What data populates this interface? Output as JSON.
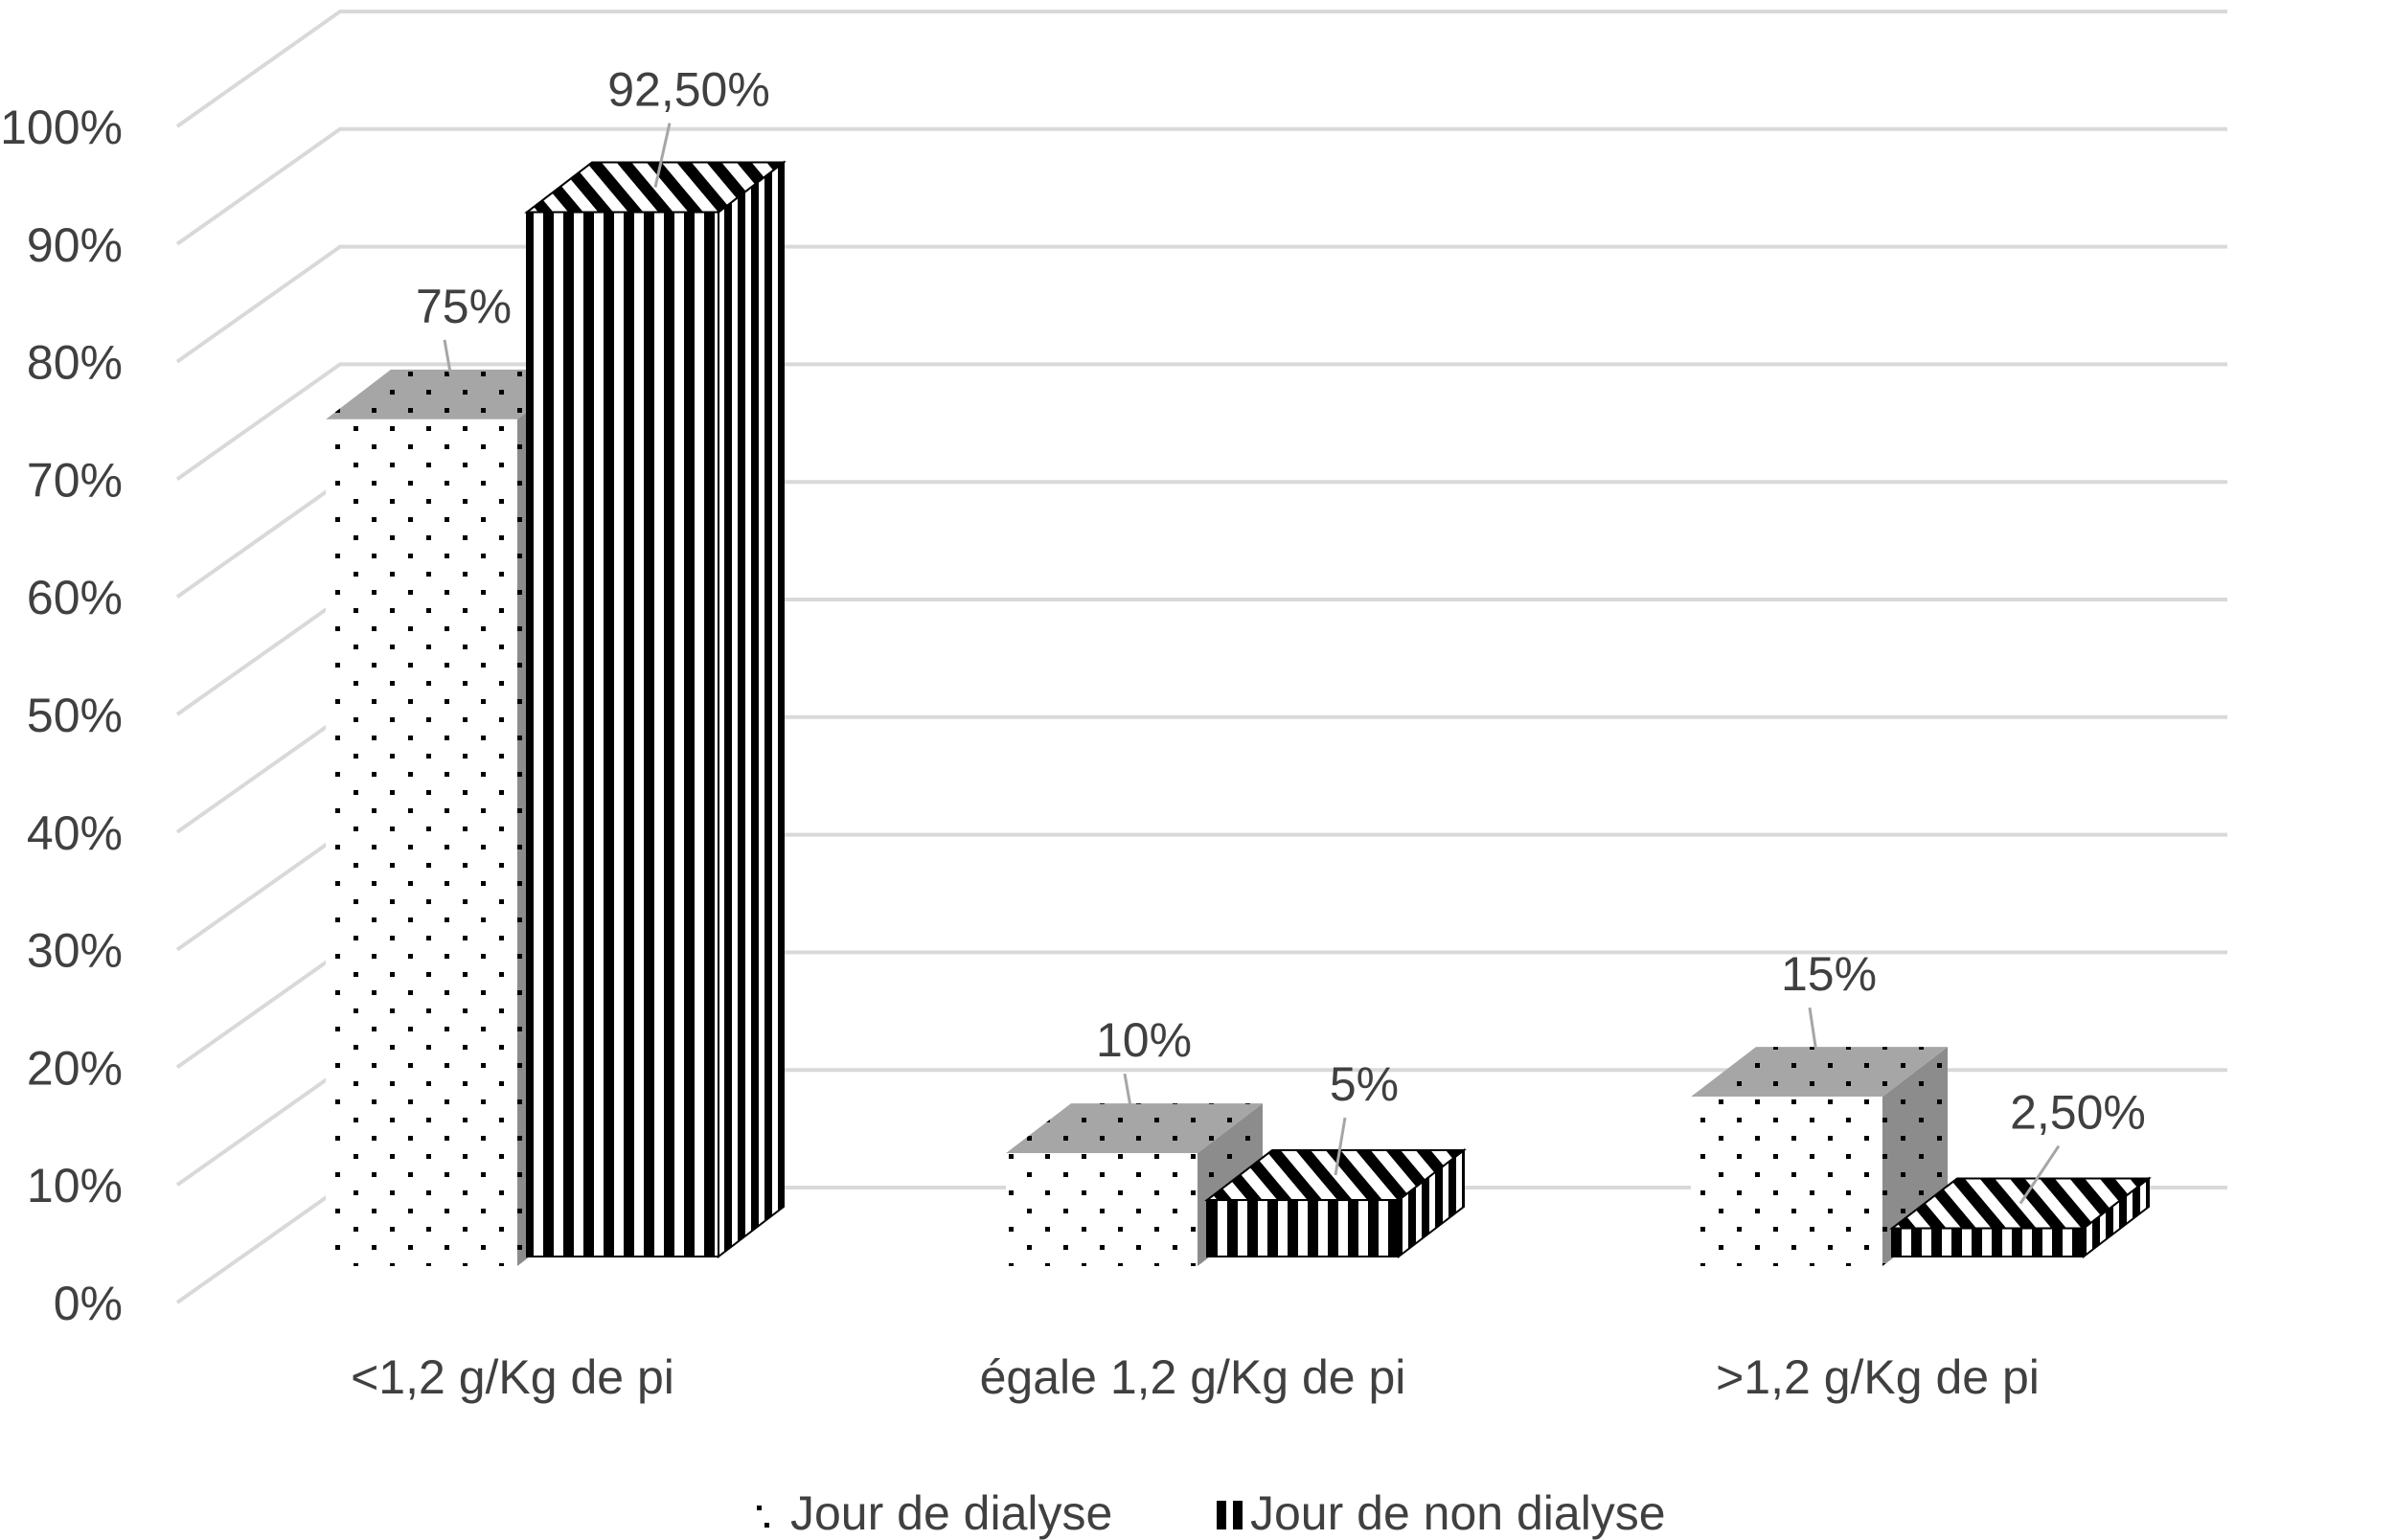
{
  "chart_data": {
    "type": "bar",
    "categories": [
      "<1,2 g/Kg de pi",
      "égale 1,2 g/Kg de pi",
      ">1,2 g/Kg de pi"
    ],
    "series": [
      {
        "name": "Jour de dialyse",
        "values": [
          75,
          10,
          15
        ],
        "labels": [
          "75%",
          "10%",
          "15%"
        ],
        "pattern": "dots"
      },
      {
        "name": "Jour de non dialyse",
        "values": [
          92.5,
          5,
          2.5
        ],
        "labels": [
          "92,50%",
          "5%",
          "2,50%"
        ],
        "pattern": "vertical-stripes"
      }
    ],
    "yticks": [
      "0%",
      "10%",
      "20%",
      "30%",
      "40%",
      "50%",
      "60%",
      "70%",
      "80%",
      "90%",
      "100%"
    ],
    "ylim": [
      0,
      100
    ],
    "grid": true,
    "legend_position": "bottom",
    "style": "3d-clustered-column"
  },
  "colors": {
    "grid": "#d9d9d9",
    "text": "#404040",
    "bar_face": "#ffffff",
    "bar_ink": "#000000",
    "bar_top_gray": "#a6a6a6"
  }
}
